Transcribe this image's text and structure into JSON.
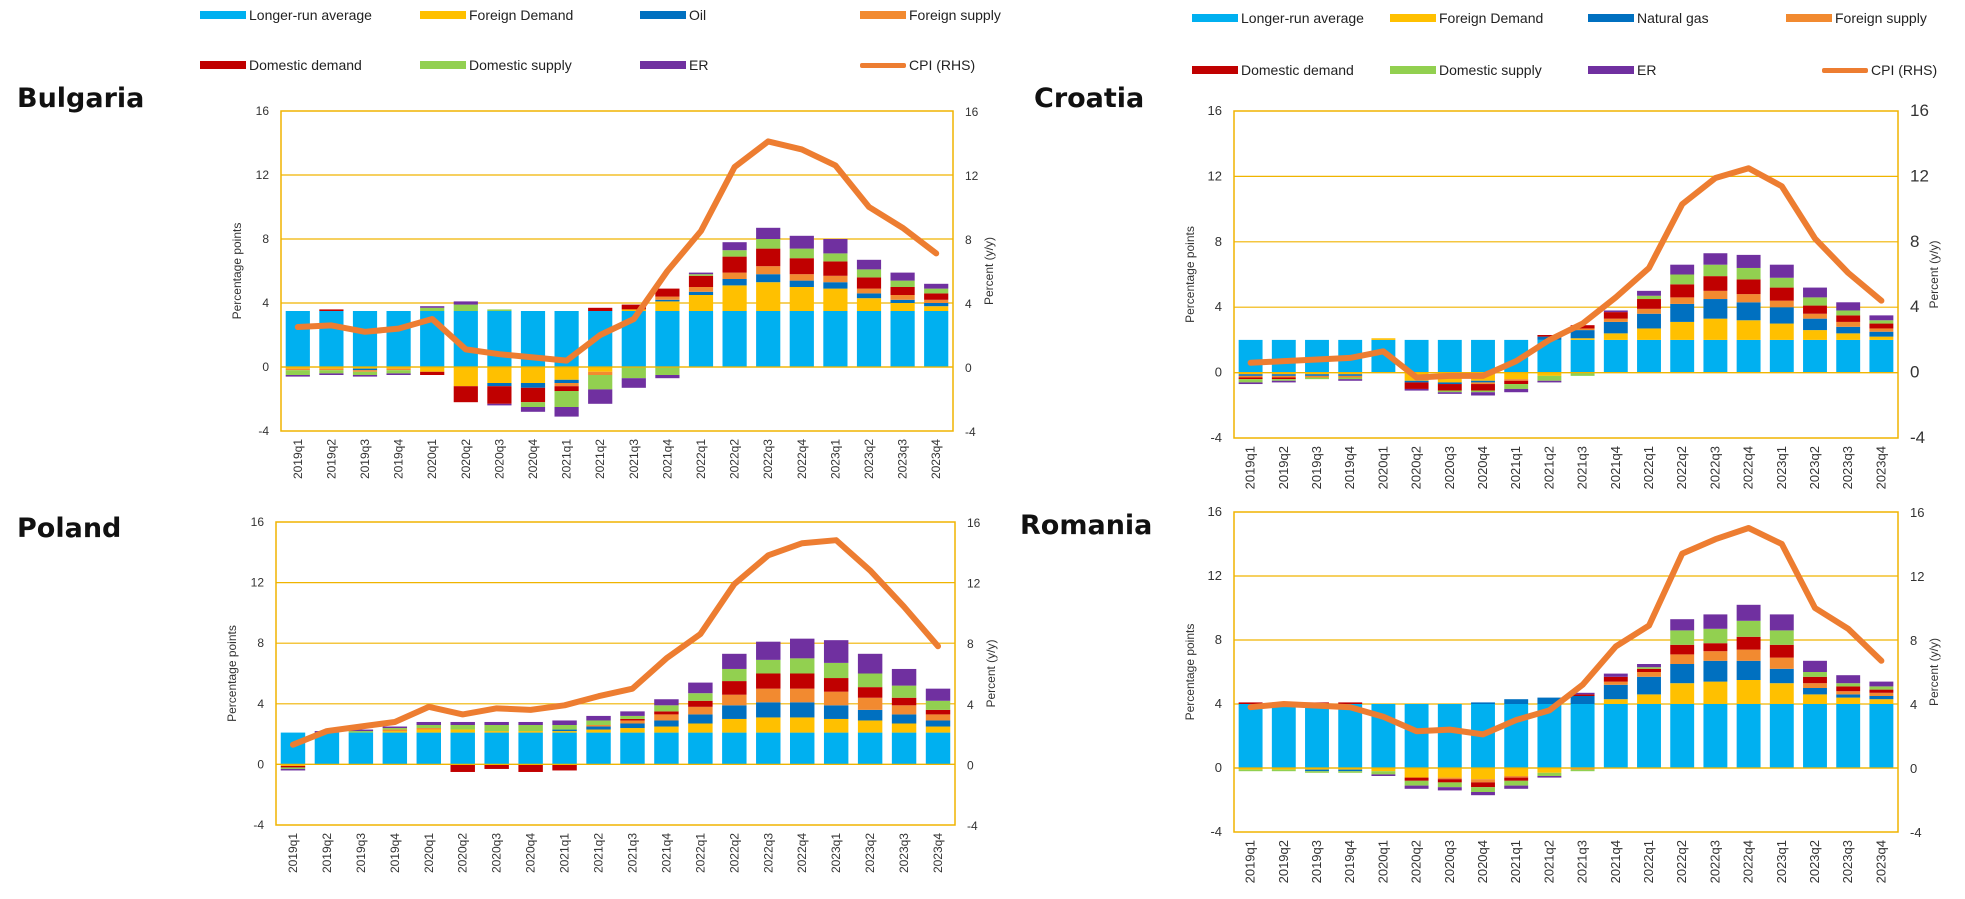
{
  "colors": {
    "longer_run": "#00b0f0",
    "foreign_demand": "#ffc000",
    "energy": "#0070c0",
    "foreign_supply": "#f28a30",
    "domestic_demand": "#c00000",
    "domestic_supply": "#92d050",
    "er": "#7030a0",
    "cpi": "#ed7d31",
    "frame": "#f0b400"
  },
  "legends": [
    {
      "items": [
        {
          "label": "Longer-run average",
          "key": "longer_run"
        },
        {
          "label": "Foreign Demand",
          "key": "foreign_demand"
        },
        {
          "label": "Oil",
          "key": "energy"
        },
        {
          "label": "Foreign supply",
          "key": "foreign_supply"
        },
        {
          "label": "Domestic demand",
          "key": "domestic_demand"
        },
        {
          "label": "Domestic supply",
          "key": "domestic_supply"
        },
        {
          "label": "ER",
          "key": "er"
        },
        {
          "label": "CPI (RHS)",
          "key": "cpi"
        }
      ]
    },
    {
      "items": [
        {
          "label": "Longer-run average",
          "key": "longer_run"
        },
        {
          "label": "Foreign Demand",
          "key": "foreign_demand"
        },
        {
          "label": "Natural gas",
          "key": "energy"
        },
        {
          "label": "Foreign supply",
          "key": "foreign_supply"
        },
        {
          "label": "Domestic demand",
          "key": "domestic_demand"
        },
        {
          "label": "Domestic supply",
          "key": "domestic_supply"
        },
        {
          "label": "ER",
          "key": "er"
        },
        {
          "label": "CPI (RHS)",
          "key": "cpi"
        }
      ]
    }
  ],
  "chart_data": [
    {
      "type": "bar",
      "title": "Bulgaria",
      "ylabel": "Percentage points",
      "y2label": "Percent (y/y)",
      "ylim": [
        -4,
        16
      ],
      "yticks": [
        "-4",
        "0",
        "4",
        "8",
        "12",
        "16"
      ],
      "categories": [
        "2019q1",
        "2019q2",
        "2019q3",
        "2019q4",
        "2020q1",
        "2020q2",
        "2020q3",
        "2020q4",
        "2021q1",
        "2021q2",
        "2021q3",
        "2021q4",
        "2022q1",
        "2022q2",
        "2022q3",
        "2022q4",
        "2023q1",
        "2023q2",
        "2023q3",
        "2023q4"
      ],
      "series": [
        {
          "name": "Longer-run average",
          "values": [
            3.5,
            3.5,
            3.5,
            3.5,
            3.5,
            3.5,
            3.5,
            3.5,
            3.5,
            3.5,
            3.5,
            3.5,
            3.5,
            3.5,
            3.5,
            3.5,
            3.5,
            3.5,
            3.5,
            3.5
          ]
        },
        {
          "name": "Foreign Demand",
          "values": [
            -0.1,
            -0.1,
            -0.1,
            -0.1,
            -0.3,
            -1.2,
            -1.0,
            -1.0,
            -0.8,
            -0.3,
            0.1,
            0.6,
            1.0,
            1.6,
            1.8,
            1.5,
            1.4,
            0.8,
            0.5,
            0.3
          ]
        },
        {
          "name": "Oil",
          "values": [
            0.0,
            0.0,
            -0.1,
            0.0,
            0.0,
            0.0,
            -0.2,
            -0.3,
            -0.2,
            0.0,
            0.0,
            0.1,
            0.2,
            0.4,
            0.5,
            0.4,
            0.4,
            0.3,
            0.2,
            0.2
          ]
        },
        {
          "name": "Foreign supply",
          "values": [
            -0.1,
            -0.1,
            -0.1,
            -0.1,
            0.0,
            0.0,
            0.0,
            0.0,
            -0.2,
            -0.2,
            0.0,
            0.2,
            0.3,
            0.4,
            0.5,
            0.4,
            0.4,
            0.3,
            0.3,
            0.2
          ]
        },
        {
          "name": "Domestic demand",
          "values": [
            0.0,
            0.1,
            0.0,
            0.0,
            -0.2,
            -1.0,
            -1.1,
            -0.9,
            -0.3,
            0.2,
            0.3,
            0.5,
            0.7,
            1.0,
            1.1,
            1.0,
            0.9,
            0.7,
            0.5,
            0.4
          ]
        },
        {
          "name": "Domestic supply",
          "values": [
            -0.3,
            -0.2,
            -0.2,
            -0.2,
            0.2,
            0.4,
            0.1,
            -0.3,
            -1.0,
            -0.9,
            -0.7,
            -0.5,
            0.1,
            0.4,
            0.6,
            0.6,
            0.5,
            0.5,
            0.4,
            0.3
          ]
        },
        {
          "name": "ER",
          "values": [
            -0.1,
            -0.1,
            -0.1,
            -0.1,
            0.1,
            0.2,
            -0.1,
            -0.3,
            -0.6,
            -0.9,
            -0.6,
            -0.2,
            0.1,
            0.5,
            0.7,
            0.8,
            0.9,
            0.6,
            0.5,
            0.3
          ]
        },
        {
          "name": "CPI (RHS)",
          "values": [
            2.5,
            2.6,
            2.2,
            2.4,
            3.0,
            1.1,
            0.8,
            0.6,
            0.4,
            2.0,
            3.0,
            6.0,
            8.5,
            12.5,
            14.1,
            13.6,
            12.6,
            10.0,
            8.7,
            7.1
          ]
        }
      ]
    },
    {
      "type": "bar",
      "title": "Croatia",
      "ylabel": "Percentage points",
      "y2label": "Percent (y/y)",
      "ylim": [
        -4,
        16
      ],
      "yticks": [
        "-4",
        "0",
        "4",
        "8",
        "12",
        "16"
      ],
      "categories": [
        "2019q1",
        "2019q2",
        "2019q3",
        "2019q4",
        "2020q1",
        "2020q2",
        "2020q3",
        "2020q4",
        "2021q1",
        "2021q2",
        "2021q3",
        "2021q4",
        "2022q1",
        "2022q2",
        "2022q3",
        "2022q4",
        "2023q1",
        "2023q2",
        "2023q3",
        "2023q4"
      ],
      "series": [
        {
          "name": "Longer-run average",
          "values": [
            2.0,
            2.0,
            2.0,
            2.0,
            2.0,
            2.0,
            2.0,
            2.0,
            2.0,
            2.0,
            2.0,
            2.0,
            2.0,
            2.0,
            2.0,
            2.0,
            2.0,
            2.0,
            2.0,
            2.0
          ]
        },
        {
          "name": "Foreign Demand",
          "values": [
            -0.1,
            -0.1,
            -0.1,
            -0.1,
            0.1,
            -0.5,
            -0.6,
            -0.5,
            -0.4,
            -0.2,
            0.1,
            0.4,
            0.7,
            1.1,
            1.3,
            1.2,
            1.0,
            0.6,
            0.4,
            0.2
          ]
        },
        {
          "name": "Natural gas",
          "values": [
            -0.1,
            -0.1,
            -0.1,
            -0.1,
            0.0,
            -0.1,
            -0.1,
            -0.1,
            0.0,
            0.2,
            0.5,
            0.7,
            0.9,
            1.1,
            1.2,
            1.1,
            1.0,
            0.7,
            0.4,
            0.3
          ]
        },
        {
          "name": "Foreign supply",
          "values": [
            -0.1,
            -0.1,
            -0.1,
            -0.1,
            0.0,
            0.0,
            0.0,
            -0.1,
            -0.1,
            0.0,
            0.1,
            0.2,
            0.3,
            0.4,
            0.5,
            0.5,
            0.4,
            0.3,
            0.3,
            0.2
          ]
        },
        {
          "name": "Domestic demand",
          "values": [
            -0.1,
            -0.1,
            0.0,
            0.0,
            0.0,
            -0.4,
            -0.4,
            -0.4,
            -0.2,
            0.1,
            0.2,
            0.4,
            0.6,
            0.8,
            0.9,
            0.9,
            0.8,
            0.5,
            0.4,
            0.3
          ]
        },
        {
          "name": "Domestic supply",
          "values": [
            -0.2,
            -0.1,
            -0.1,
            -0.1,
            0.0,
            0.0,
            -0.1,
            -0.1,
            -0.3,
            -0.3,
            -0.2,
            0.0,
            0.2,
            0.6,
            0.7,
            0.7,
            0.6,
            0.5,
            0.3,
            0.2
          ]
        },
        {
          "name": "ER",
          "values": [
            -0.1,
            -0.1,
            0.0,
            -0.1,
            0.0,
            -0.1,
            -0.1,
            -0.2,
            -0.2,
            -0.1,
            0.0,
            0.1,
            0.3,
            0.6,
            0.7,
            0.8,
            0.8,
            0.6,
            0.5,
            0.3
          ]
        },
        {
          "name": "CPI (RHS)",
          "values": [
            0.6,
            0.7,
            0.8,
            0.9,
            1.3,
            -0.3,
            -0.2,
            -0.2,
            0.7,
            2.0,
            3.0,
            4.6,
            6.4,
            10.3,
            11.9,
            12.5,
            11.4,
            8.2,
            6.1,
            4.4
          ]
        }
      ]
    },
    {
      "type": "bar",
      "title": "Poland",
      "ylabel": "Percentage points",
      "y2label": "Percent (y/y)",
      "ylim": [
        -4,
        16
      ],
      "yticks": [
        "-4",
        "0",
        "4",
        "8",
        "12",
        "16"
      ],
      "categories": [
        "2019q1",
        "2019q2",
        "2019q3",
        "2019q4",
        "2020q1",
        "2020q2",
        "2020q3",
        "2020q4",
        "2021q1",
        "2021q2",
        "2021q3",
        "2021q4",
        "2022q1",
        "2022q2",
        "2022q3",
        "2022q4",
        "2023q1",
        "2023q2",
        "2023q3",
        "2023q4"
      ],
      "series": [
        {
          "name": "Longer-run average",
          "values": [
            2.1,
            2.1,
            2.1,
            2.1,
            2.1,
            2.1,
            2.1,
            2.1,
            2.1,
            2.1,
            2.1,
            2.1,
            2.1,
            2.1,
            2.1,
            2.1,
            2.1,
            2.1,
            2.1,
            2.1
          ]
        },
        {
          "name": "Foreign Demand",
          "values": [
            -0.1,
            0.0,
            0.0,
            0.1,
            0.2,
            0.2,
            0.1,
            0.1,
            0.1,
            0.2,
            0.3,
            0.4,
            0.6,
            0.9,
            1.0,
            1.0,
            0.9,
            0.8,
            0.6,
            0.4
          ]
        },
        {
          "name": "Oil",
          "values": [
            0.0,
            0.0,
            0.0,
            0.0,
            0.0,
            0.0,
            0.0,
            0.0,
            0.1,
            0.2,
            0.3,
            0.4,
            0.6,
            0.9,
            1.0,
            1.0,
            0.9,
            0.7,
            0.6,
            0.4
          ]
        },
        {
          "name": "Foreign supply",
          "values": [
            0.0,
            0.0,
            0.0,
            0.1,
            0.1,
            0.0,
            0.0,
            0.0,
            0.0,
            0.1,
            0.2,
            0.4,
            0.5,
            0.7,
            0.9,
            0.9,
            0.9,
            0.8,
            0.6,
            0.4
          ]
        },
        {
          "name": "Domestic demand",
          "values": [
            -0.1,
            0.0,
            0.0,
            0.0,
            0.0,
            -0.5,
            -0.3,
            -0.5,
            -0.4,
            0.0,
            0.1,
            0.2,
            0.4,
            0.9,
            1.0,
            1.0,
            0.9,
            0.7,
            0.5,
            0.3
          ]
        },
        {
          "name": "Domestic supply",
          "values": [
            -0.1,
            0.0,
            0.1,
            0.1,
            0.2,
            0.3,
            0.4,
            0.4,
            0.3,
            0.3,
            0.2,
            0.4,
            0.5,
            0.8,
            0.9,
            1.0,
            1.0,
            0.9,
            0.8,
            0.6
          ]
        },
        {
          "name": "ER",
          "values": [
            -0.1,
            0.1,
            0.1,
            0.1,
            0.2,
            0.2,
            0.2,
            0.2,
            0.3,
            0.3,
            0.3,
            0.4,
            0.7,
            1.0,
            1.2,
            1.3,
            1.5,
            1.3,
            1.1,
            0.8
          ]
        },
        {
          "name": "CPI (RHS)",
          "values": [
            1.3,
            2.2,
            2.5,
            2.8,
            3.8,
            3.3,
            3.7,
            3.6,
            3.9,
            4.5,
            5.0,
            7.0,
            8.6,
            11.9,
            13.8,
            14.6,
            14.8,
            12.8,
            10.4,
            7.8
          ]
        }
      ]
    },
    {
      "type": "bar",
      "title": "Romania",
      "ylabel": "Percentage points",
      "y2label": "Percent (y/y)",
      "ylim": [
        -4,
        16
      ],
      "yticks": [
        "-4",
        "0",
        "4",
        "8",
        "12",
        "16"
      ],
      "categories": [
        "2019q1",
        "2019q2",
        "2019q3",
        "2019q4",
        "2020q1",
        "2020q2",
        "2020q3",
        "2020q4",
        "2021q1",
        "2021q2",
        "2021q3",
        "2021q4",
        "2022q1",
        "2022q2",
        "2022q3",
        "2022q4",
        "2023q1",
        "2023q2",
        "2023q3",
        "2023q4"
      ],
      "series": [
        {
          "name": "Longer-run average",
          "values": [
            4.0,
            4.0,
            4.0,
            4.0,
            4.0,
            4.0,
            4.0,
            4.0,
            4.0,
            4.0,
            4.0,
            4.0,
            4.0,
            4.0,
            4.0,
            4.0,
            4.0,
            4.0,
            4.0,
            4.0
          ]
        },
        {
          "name": "Foreign Demand",
          "values": [
            -0.1,
            -0.1,
            -0.1,
            -0.1,
            -0.2,
            -0.6,
            -0.6,
            -0.7,
            -0.5,
            -0.3,
            0.0,
            0.3,
            0.6,
            1.3,
            1.4,
            1.5,
            1.3,
            0.6,
            0.4,
            0.3
          ]
        },
        {
          "name": "Natural gas",
          "values": [
            0.0,
            0.0,
            -0.1,
            -0.1,
            0.0,
            0.0,
            0.0,
            0.1,
            0.3,
            0.4,
            0.5,
            0.9,
            1.1,
            1.2,
            1.3,
            1.2,
            0.9,
            0.4,
            0.2,
            0.2
          ]
        },
        {
          "name": "Foreign supply",
          "values": [
            0.0,
            0.0,
            0.0,
            0.0,
            0.0,
            0.0,
            -0.1,
            -0.2,
            -0.1,
            0.0,
            -0.1,
            0.2,
            0.3,
            0.6,
            0.6,
            0.7,
            0.7,
            0.3,
            0.2,
            0.2
          ]
        },
        {
          "name": "Domestic demand",
          "values": [
            0.1,
            0.1,
            0.1,
            0.1,
            0.0,
            -0.2,
            -0.2,
            -0.3,
            -0.2,
            0.0,
            0.1,
            0.3,
            0.2,
            0.6,
            0.5,
            0.8,
            0.8,
            0.4,
            0.3,
            0.2
          ]
        },
        {
          "name": "Domestic supply",
          "values": [
            -0.1,
            -0.1,
            -0.1,
            -0.1,
            -0.2,
            -0.3,
            -0.3,
            -0.3,
            -0.3,
            -0.2,
            -0.1,
            0.0,
            0.1,
            0.9,
            0.9,
            1.0,
            0.9,
            0.3,
            0.2,
            0.2
          ]
        },
        {
          "name": "ER",
          "values": [
            0.0,
            0.0,
            0.0,
            0.0,
            -0.1,
            -0.2,
            -0.2,
            -0.2,
            -0.2,
            -0.1,
            0.1,
            0.2,
            0.2,
            0.7,
            0.9,
            1.0,
            1.0,
            0.7,
            0.5,
            0.3
          ]
        },
        {
          "name": "CPI (RHS)",
          "values": [
            3.8,
            4.0,
            3.9,
            3.8,
            3.2,
            2.3,
            2.4,
            2.1,
            3.0,
            3.6,
            5.2,
            7.6,
            8.9,
            13.4,
            14.3,
            15.0,
            14.0,
            10.0,
            8.7,
            6.7
          ]
        }
      ]
    }
  ]
}
